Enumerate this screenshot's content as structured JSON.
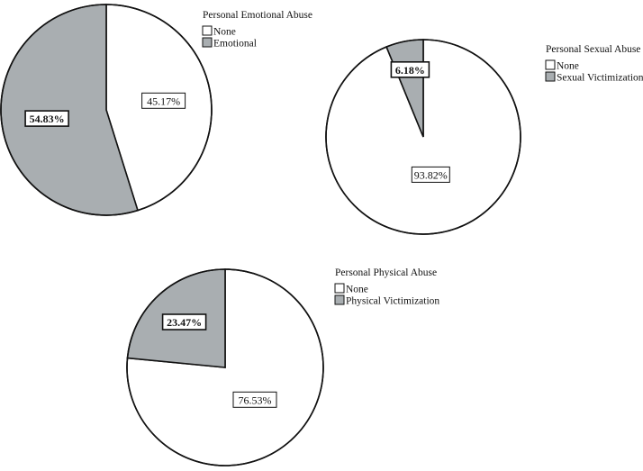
{
  "colors": {
    "none": "#ffffff",
    "victim": "#a9aeb1",
    "outline": "#111111"
  },
  "chart_data": [
    {
      "type": "pie",
      "id": "emotional",
      "legend_title": "Personal Emotional Abuse",
      "legend_placement": "top-right",
      "slices": [
        {
          "label": "None",
          "value": 45.17,
          "display": "45.17%",
          "color_key": "none"
        },
        {
          "label": "Emotional",
          "value": 54.83,
          "display": "54.83%",
          "color_key": "victim"
        }
      ]
    },
    {
      "type": "pie",
      "id": "sexual",
      "legend_title": "Personal Sexual Abuse",
      "legend_placement": "top-right",
      "slices": [
        {
          "label": "None",
          "value": 93.82,
          "display": "93.82%",
          "color_key": "none"
        },
        {
          "label": "Sexual Victimization",
          "value": 6.18,
          "display": "6.18%",
          "color_key": "victim"
        }
      ]
    },
    {
      "type": "pie",
      "id": "physical",
      "legend_title": "Personal Physical Abuse",
      "legend_placement": "top-right",
      "slices": [
        {
          "label": "None",
          "value": 76.53,
          "display": "76.53%",
          "color_key": "none"
        },
        {
          "label": "Physical Victimization",
          "value": 23.47,
          "display": "23.47%",
          "color_key": "victim"
        }
      ]
    }
  ]
}
